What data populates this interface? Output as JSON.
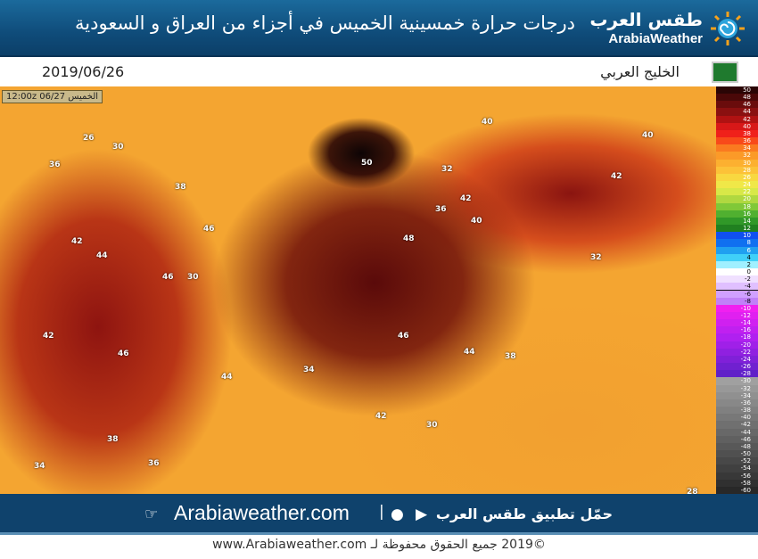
{
  "header": {
    "title": "درجات حرارة خمسينية الخميس في أجزاء من العراق و السعودية",
    "logo_ar": "طقس العرب",
    "logo_en": "ArabiaWeather",
    "logo_icon": "sun-swirl-icon"
  },
  "subheader": {
    "date": "2019/06/26",
    "region": "الخليج العربي",
    "flag_icon": "saudi-flag-icon"
  },
  "map": {
    "timestamp": "12:00z 06/27 الخميس",
    "colors": {
      "extreme": "#3a0606",
      "very_hot": "#8e1410",
      "hot": "#e8261c",
      "warm": "#f4a531"
    },
    "labels": [
      "50",
      "48",
      "46",
      "46",
      "46",
      "46",
      "44",
      "44",
      "44",
      "42",
      "42",
      "42",
      "42",
      "42",
      "40",
      "40",
      "40",
      "38",
      "36",
      "36",
      "34",
      "32",
      "32",
      "30",
      "30",
      "28",
      "38",
      "34",
      "36",
      "26",
      "30",
      "38"
    ]
  },
  "legend": {
    "values": [
      "50",
      "48",
      "46",
      "44",
      "42",
      "40",
      "38",
      "36",
      "34",
      "32",
      "30",
      "28",
      "26",
      "24",
      "22",
      "20",
      "18",
      "16",
      "14",
      "12",
      "10",
      "8",
      "6",
      "4",
      "2",
      "0",
      "-2",
      "-4",
      "-6",
      "-8",
      "-10",
      "-12",
      "-14",
      "-16",
      "-18",
      "-20",
      "-22",
      "-24",
      "-26",
      "-28",
      "-30",
      "-32",
      "-34",
      "-36",
      "-38",
      "-40",
      "-42",
      "-44",
      "-46",
      "-48",
      "-50",
      "-52",
      "-54",
      "-56",
      "-58",
      "-60"
    ]
  },
  "footer": {
    "site": "Arabiaweather.com",
    "separator": "|",
    "app_text": "حمّل تطبيق طقس العرب",
    "copyright": "©2019 جميع الحقوق محفوظة لـ www.Arabiaweather.com"
  }
}
